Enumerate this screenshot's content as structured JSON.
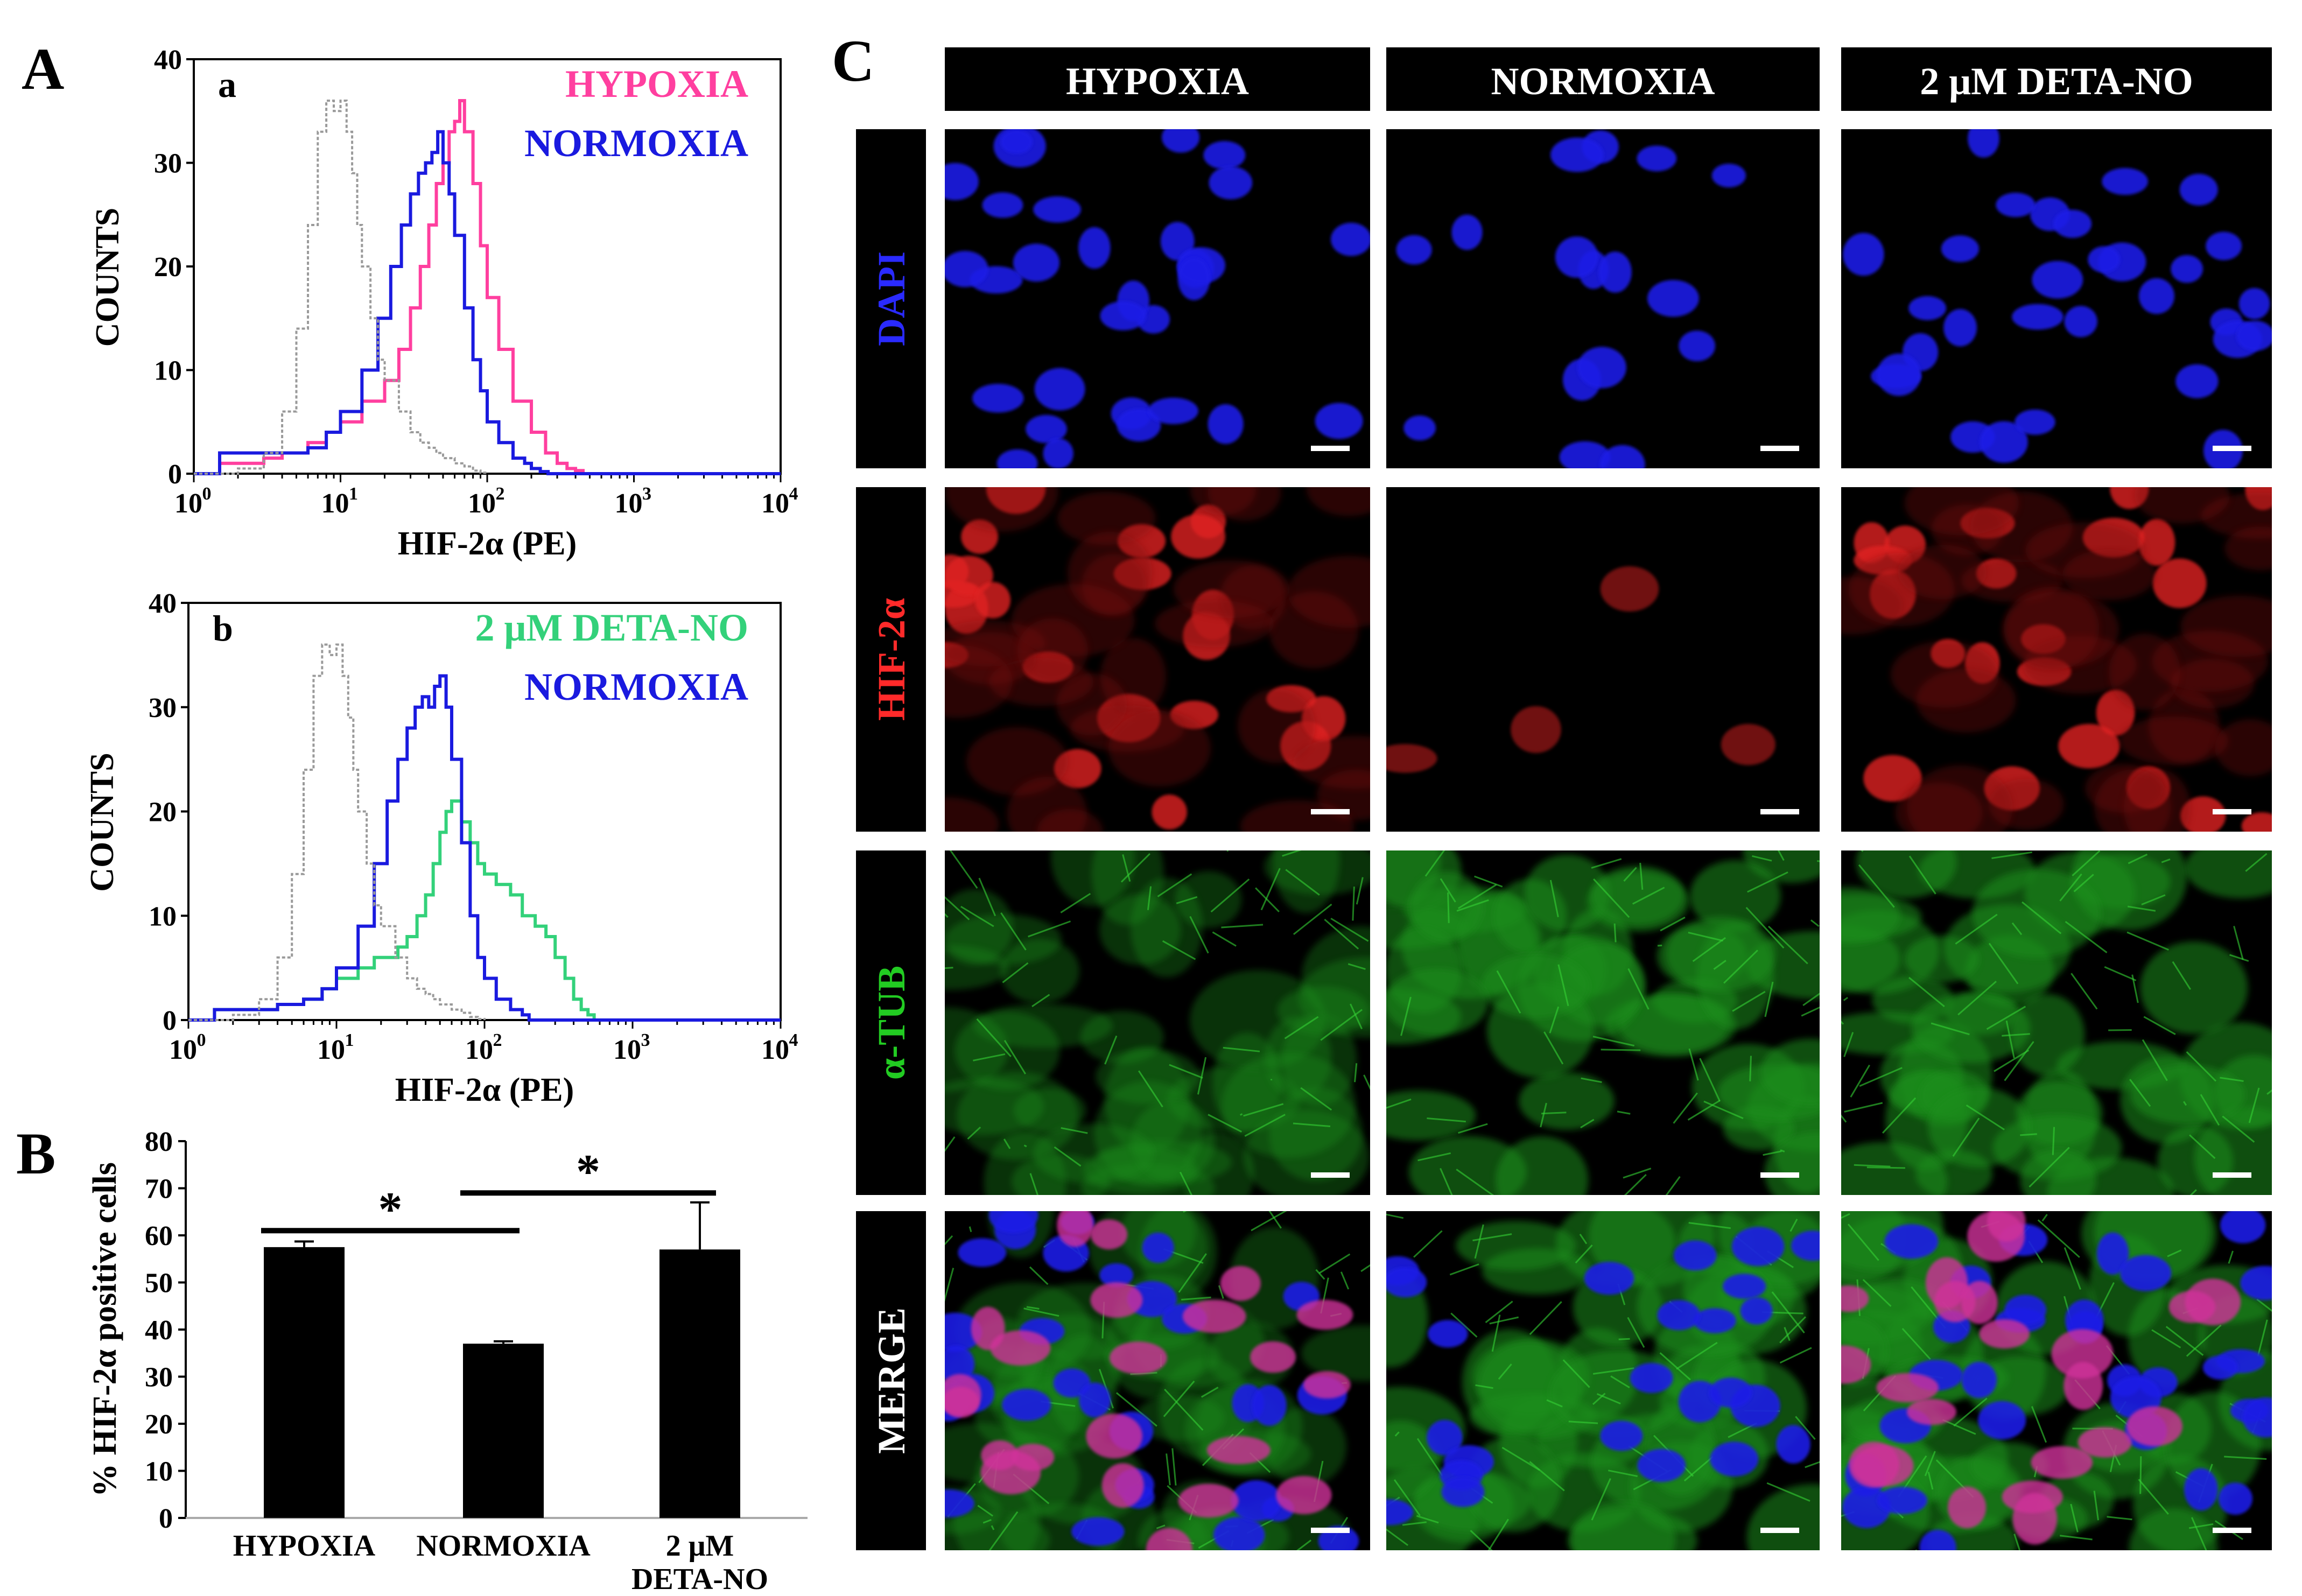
{
  "panel_labels": {
    "A": "A",
    "B": "B",
    "C": "C"
  },
  "colors": {
    "hypoxia": "#ff3f9f",
    "normoxia": "#1a1adf",
    "deta": "#33d17a",
    "isotype": "#9a9a9a",
    "dapi": "#2a2aff",
    "hif": "#ff2a2a",
    "tub": "#22cc22",
    "merge": "#ffffff"
  },
  "chart_data": [
    {
      "id": "Aa",
      "type": "line",
      "sublabel": "a",
      "xlabel": "HIF-2α (PE)",
      "ylabel": "COUNTS",
      "x_scale": "log",
      "xlim": [
        1,
        10000
      ],
      "ylim": [
        0,
        40
      ],
      "yticks": [
        0,
        10,
        20,
        30,
        40
      ],
      "xticks": [
        {
          "base": "10",
          "exp": "0"
        },
        {
          "base": "10",
          "exp": "1"
        },
        {
          "base": "10",
          "exp": "2"
        },
        {
          "base": "10",
          "exp": "3"
        },
        {
          "base": "10",
          "exp": "4"
        }
      ],
      "legend": [
        "HYPOXIA",
        "NORMOXIA"
      ],
      "series": [
        {
          "name": "HYPOXIA",
          "color": "#ff3f9f",
          "x": [
            1,
            1.5,
            2,
            3,
            4,
            6,
            8,
            10,
            14,
            20,
            25,
            30,
            35,
            40,
            45,
            50,
            55,
            60,
            65,
            70,
            80,
            90,
            100,
            120,
            150,
            200,
            250,
            300,
            350,
            400,
            450,
            10000
          ],
          "y": [
            0,
            1,
            1,
            1.5,
            2,
            3,
            4,
            5,
            7,
            9,
            12,
            16,
            20,
            24,
            28,
            30,
            33,
            34,
            36,
            33,
            28,
            22,
            17,
            12,
            7,
            4,
            2,
            1,
            0.5,
            0.3,
            0,
            0
          ]
        },
        {
          "name": "NORMOXIA",
          "color": "#1a1adf",
          "x": [
            1,
            1.5,
            2,
            3,
            4,
            6,
            8,
            10,
            14,
            18,
            22,
            26,
            30,
            34,
            38,
            42,
            46,
            50,
            55,
            60,
            70,
            80,
            90,
            100,
            120,
            150,
            180,
            200,
            230,
            260,
            10000
          ],
          "y": [
            0,
            2,
            2,
            2,
            2,
            2.5,
            4,
            6,
            10,
            15,
            20,
            24,
            27,
            29,
            30,
            31,
            33,
            30,
            27,
            23,
            16,
            11,
            8,
            5,
            3,
            1.5,
            1,
            0.5,
            0.2,
            0,
            0
          ]
        },
        {
          "name": "",
          "color": "#9a9a9a",
          "dashed": true,
          "x": [
            1,
            2,
            3,
            4,
            5,
            6,
            7,
            8,
            9,
            10,
            11,
            12,
            13,
            14,
            16,
            18,
            20,
            25,
            30,
            35,
            40,
            45,
            50,
            60,
            70,
            80,
            90,
            100
          ],
          "y": [
            0,
            0.5,
            2,
            6,
            14,
            24,
            33,
            36,
            35,
            36,
            33,
            29,
            24,
            20,
            15,
            11,
            9,
            6,
            4,
            3,
            2.5,
            2,
            1.5,
            1,
            0.7,
            0.3,
            0.1,
            0
          ]
        }
      ]
    },
    {
      "id": "Ab",
      "type": "line",
      "sublabel": "b",
      "xlabel": "HIF-2α (PE)",
      "ylabel": "COUNTS",
      "x_scale": "log",
      "xlim": [
        1,
        10000
      ],
      "ylim": [
        0,
        40
      ],
      "yticks": [
        0,
        10,
        20,
        30,
        40
      ],
      "xticks": [
        {
          "base": "10",
          "exp": "0"
        },
        {
          "base": "10",
          "exp": "1"
        },
        {
          "base": "10",
          "exp": "2"
        },
        {
          "base": "10",
          "exp": "3"
        },
        {
          "base": "10",
          "exp": "4"
        }
      ],
      "legend": [
        "2 μM DETA-NO",
        "NORMOXIA"
      ],
      "series": [
        {
          "name": "2 μM DETA-NO",
          "color": "#33d17a",
          "x": [
            1,
            1.5,
            2,
            3,
            4,
            6,
            8,
            10,
            14,
            18,
            22,
            26,
            30,
            35,
            40,
            45,
            50,
            55,
            60,
            70,
            80,
            90,
            100,
            120,
            150,
            180,
            220,
            260,
            300,
            350,
            400,
            450,
            500,
            550,
            10000
          ],
          "y": [
            0,
            1,
            1,
            1,
            1.5,
            2,
            3,
            4,
            5,
            6,
            6,
            7,
            8,
            10,
            12,
            15,
            18,
            20,
            21,
            19,
            17,
            15,
            14,
            13,
            12,
            10,
            9,
            8,
            6,
            4,
            2,
            1,
            0.5,
            0,
            0
          ]
        },
        {
          "name": "NORMOXIA",
          "color": "#1a1adf",
          "x": [
            1,
            1.5,
            2,
            3,
            4,
            6,
            8,
            10,
            14,
            18,
            22,
            26,
            30,
            34,
            38,
            42,
            46,
            50,
            55,
            60,
            70,
            80,
            90,
            100,
            120,
            150,
            180,
            200,
            10000
          ],
          "y": [
            0,
            1,
            1,
            1,
            1.5,
            2,
            3,
            5,
            9,
            15,
            21,
            25,
            28,
            30,
            31,
            30,
            32,
            33,
            30,
            25,
            17,
            10,
            6,
            4,
            2,
            1,
            0.5,
            0,
            0
          ]
        },
        {
          "name": "",
          "color": "#9a9a9a",
          "dashed": true,
          "x": [
            1,
            2,
            3,
            4,
            5,
            6,
            7,
            8,
            9,
            10,
            11,
            12,
            13,
            14,
            16,
            18,
            20,
            25,
            30,
            35,
            40,
            45,
            50,
            60,
            70,
            80,
            90,
            100
          ],
          "y": [
            0,
            0.5,
            2,
            6,
            14,
            24,
            33,
            36,
            35,
            36,
            33,
            29,
            24,
            20,
            15,
            11,
            9,
            6,
            4,
            3,
            2.5,
            2,
            1.5,
            1,
            0.7,
            0.3,
            0.1,
            0
          ]
        }
      ]
    },
    {
      "id": "B",
      "type": "bar",
      "ylabel": "% HIF-2α positive cells",
      "ylim": [
        0,
        80
      ],
      "yticks": [
        0,
        10,
        20,
        30,
        40,
        50,
        60,
        70,
        80
      ],
      "categories": [
        [
          "HYPOXIA"
        ],
        [
          "NORMOXIA"
        ],
        [
          "2 μM",
          "DETA-NO"
        ]
      ],
      "values": [
        57.5,
        37,
        57
      ],
      "errors": [
        1.2,
        0.5,
        10
      ],
      "significance": [
        {
          "from": 0,
          "to": 1,
          "y": 61,
          "label": "*"
        },
        {
          "from": 1,
          "to": 2,
          "y": 69,
          "label": "*"
        }
      ]
    }
  ],
  "micrograph_grid": {
    "columns": [
      "HYPOXIA",
      "NORMOXIA",
      "2 μM DETA-NO"
    ],
    "rows": [
      {
        "label": "DAPI",
        "stain": "dapi"
      },
      {
        "label": "HIF-2α",
        "stain": "hif"
      },
      {
        "label": "α-TUB",
        "stain": "tub"
      },
      {
        "label": "MERGE",
        "stain": "merge"
      }
    ]
  }
}
